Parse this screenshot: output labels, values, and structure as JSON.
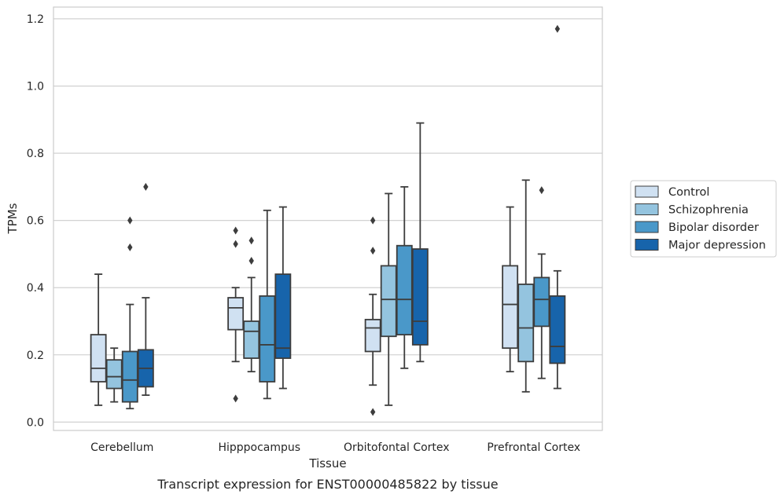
{
  "caption": "Transcript expression for ENST00000485822 by tissue",
  "chart_data": {
    "type": "box",
    "xlabel": "Tissue",
    "ylabel": "TPMs",
    "ylim": [
      -0.025,
      1.235
    ],
    "yticks": [
      0.0,
      0.2,
      0.4,
      0.6,
      0.8,
      1.0,
      1.2
    ],
    "ytick_labels": [
      "0.0",
      "0.2",
      "0.4",
      "0.6",
      "0.8",
      "1.0",
      "1.2"
    ],
    "grid": true,
    "legend_position": "center-right",
    "categories": [
      "Cerebellum",
      "Hipppocampus",
      "Orbitofontal Cortex",
      "Prefrontal Cortex"
    ],
    "series": [
      {
        "name": "Control",
        "color": "#d0e1f2",
        "boxes": [
          {
            "whislo": 0.05,
            "q1": 0.12,
            "med": 0.16,
            "q3": 0.26,
            "whishi": 0.44,
            "fliers": []
          },
          {
            "whislo": 0.18,
            "q1": 0.275,
            "med": 0.34,
            "q3": 0.37,
            "whishi": 0.4,
            "fliers": [
              0.57,
              0.53,
              0.07
            ]
          },
          {
            "whislo": 0.11,
            "q1": 0.21,
            "med": 0.28,
            "q3": 0.305,
            "whishi": 0.38,
            "fliers": [
              0.6,
              0.51,
              0.03
            ]
          },
          {
            "whislo": 0.15,
            "q1": 0.22,
            "med": 0.35,
            "q3": 0.465,
            "whishi": 0.64,
            "fliers": []
          }
        ]
      },
      {
        "name": "Schizophrenia",
        "color": "#94c4df",
        "boxes": [
          {
            "whislo": 0.06,
            "q1": 0.1,
            "med": 0.135,
            "q3": 0.185,
            "whishi": 0.22,
            "fliers": []
          },
          {
            "whislo": 0.15,
            "q1": 0.19,
            "med": 0.27,
            "q3": 0.3,
            "whishi": 0.43,
            "fliers": [
              0.54,
              0.48
            ]
          },
          {
            "whislo": 0.05,
            "q1": 0.255,
            "med": 0.365,
            "q3": 0.465,
            "whishi": 0.68,
            "fliers": []
          },
          {
            "whislo": 0.09,
            "q1": 0.18,
            "med": 0.28,
            "q3": 0.41,
            "whishi": 0.72,
            "fliers": []
          }
        ]
      },
      {
        "name": "Bipolar disorder",
        "color": "#4a98c9",
        "boxes": [
          {
            "whislo": 0.04,
            "q1": 0.06,
            "med": 0.125,
            "q3": 0.21,
            "whishi": 0.35,
            "fliers": [
              0.6,
              0.52
            ]
          },
          {
            "whislo": 0.07,
            "q1": 0.12,
            "med": 0.23,
            "q3": 0.375,
            "whishi": 0.63,
            "fliers": []
          },
          {
            "whislo": 0.16,
            "q1": 0.26,
            "med": 0.365,
            "q3": 0.525,
            "whishi": 0.7,
            "fliers": []
          },
          {
            "whislo": 0.13,
            "q1": 0.285,
            "med": 0.365,
            "q3": 0.43,
            "whishi": 0.5,
            "fliers": [
              0.69
            ]
          }
        ]
      },
      {
        "name": "Major depression",
        "color": "#1764ab",
        "boxes": [
          {
            "whislo": 0.08,
            "q1": 0.105,
            "med": 0.16,
            "q3": 0.215,
            "whishi": 0.37,
            "fliers": [
              0.7
            ]
          },
          {
            "whislo": 0.1,
            "q1": 0.19,
            "med": 0.22,
            "q3": 0.44,
            "whishi": 0.64,
            "fliers": []
          },
          {
            "whislo": 0.18,
            "q1": 0.23,
            "med": 0.3,
            "q3": 0.515,
            "whishi": 0.89,
            "fliers": []
          },
          {
            "whislo": 0.1,
            "q1": 0.175,
            "med": 0.225,
            "q3": 0.375,
            "whishi": 0.45,
            "fliers": [
              1.17
            ]
          }
        ]
      }
    ]
  }
}
